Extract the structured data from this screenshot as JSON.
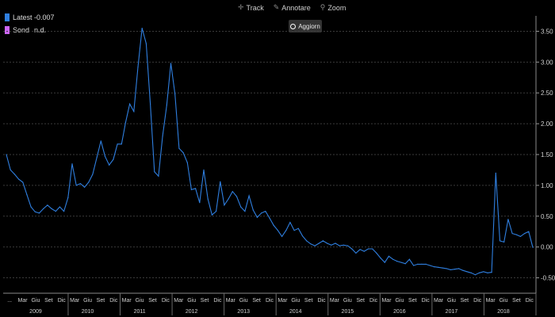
{
  "legend": {
    "items": [
      {
        "label": "Latest",
        "value": "-0.007",
        "color": "#2f7fe0"
      },
      {
        "label": "Sond",
        "value": "n.d.",
        "color": "#cc66ff"
      }
    ]
  },
  "toolbar": {
    "track": "Track",
    "annotate": "Annotare",
    "zoom": "Zoom",
    "refresh": "Aggiorn"
  },
  "chart_data": {
    "type": "line",
    "line_color": "#2f7fe0",
    "ylim": [
      -0.75,
      3.75
    ],
    "yticks": [
      {
        "v": 3.5,
        "label": "3.50"
      },
      {
        "v": 3.0,
        "label": "3.00"
      },
      {
        "v": 2.5,
        "label": "2.50"
      },
      {
        "v": 2.0,
        "label": "2.00"
      },
      {
        "v": 1.5,
        "label": "1.50"
      },
      {
        "v": 1.0,
        "label": "1.00"
      },
      {
        "v": 0.5,
        "label": "0.50"
      },
      {
        "v": 0.0,
        "label": "0.00"
      },
      {
        "v": -0.5,
        "label": "-0.50"
      }
    ],
    "months": [
      "...",
      "Mar",
      "Giu",
      "Set",
      "Dic",
      "Mar",
      "Giu",
      "Set",
      "Dic",
      "Mar",
      "Giu",
      "Set",
      "Dic",
      "Mar",
      "Giu",
      "Set",
      "Dic",
      "Mar",
      "Giu",
      "Set",
      "Dic",
      "Mar",
      "Giu",
      "Set",
      "Dic",
      "Mar",
      "Giu",
      "Set",
      "Dic",
      "Mar",
      "Giu",
      "Set",
      "Dic",
      "Mar",
      "Giu",
      "Set",
      "Dic",
      "Mar",
      "Giu",
      "Set",
      "Dic"
    ],
    "years": [
      "2009",
      "2010",
      "2011",
      "2012",
      "2013",
      "2014",
      "2015",
      "2016",
      "2017",
      "2018"
    ],
    "values": [
      1.5,
      1.25,
      1.18,
      1.1,
      1.05,
      0.85,
      0.65,
      0.57,
      0.55,
      0.62,
      0.68,
      0.62,
      0.58,
      0.65,
      0.58,
      0.8,
      1.35,
      1.0,
      1.03,
      0.97,
      1.05,
      1.18,
      1.45,
      1.72,
      1.47,
      1.33,
      1.42,
      1.67,
      1.67,
      2.02,
      2.32,
      2.2,
      2.92,
      3.55,
      3.3,
      2.32,
      1.22,
      1.15,
      1.8,
      2.3,
      2.98,
      2.48,
      1.6,
      1.53,
      1.37,
      0.93,
      0.95,
      0.72,
      1.25,
      0.78,
      0.52,
      0.58,
      1.06,
      0.68,
      0.78,
      0.9,
      0.82,
      0.65,
      0.58,
      0.83,
      0.6,
      0.48,
      0.55,
      0.58,
      0.47,
      0.35,
      0.27,
      0.17,
      0.27,
      0.4,
      0.27,
      0.3,
      0.18,
      0.1,
      0.05,
      0.02,
      0.06,
      0.1,
      0.06,
      0.03,
      0.06,
      0.02,
      0.03,
      0.02,
      -0.03,
      -0.1,
      -0.04,
      -0.07,
      -0.03,
      -0.03,
      -0.1,
      -0.18,
      -0.25,
      -0.15,
      -0.2,
      -0.23,
      -0.25,
      -0.27,
      -0.2,
      -0.3,
      -0.28,
      -0.28,
      -0.28,
      -0.3,
      -0.32,
      -0.33,
      -0.34,
      -0.35,
      -0.37,
      -0.36,
      -0.35,
      -0.38,
      -0.4,
      -0.42,
      -0.45,
      -0.42,
      -0.4,
      -0.42,
      -0.41,
      1.2,
      0.1,
      0.08,
      0.45,
      0.22,
      0.2,
      0.17,
      0.22,
      0.25,
      -0.007
    ]
  }
}
